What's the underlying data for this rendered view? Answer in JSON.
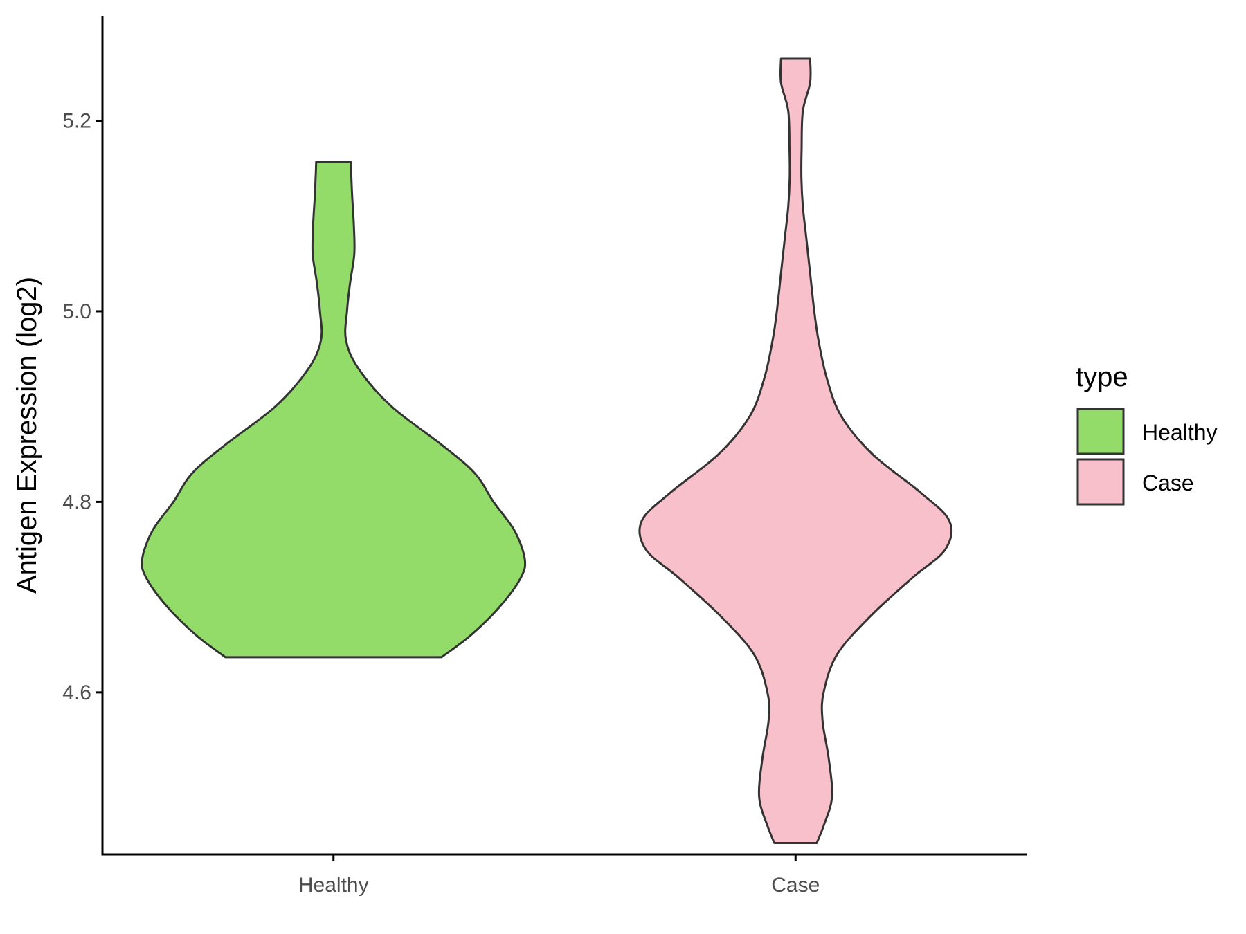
{
  "chart_data": {
    "type": "violin",
    "ylabel": "Antigen Expression (log2)",
    "xlabel": "",
    "categories": [
      "Healthy",
      "Case"
    ],
    "y_ticks": [
      "4.6",
      "4.8",
      "5.0",
      "5.2"
    ],
    "ylim": [
      4.43,
      5.31
    ],
    "legend": {
      "title": "type",
      "position": "right",
      "entries": [
        {
          "label": "Healthy",
          "color": "#93dc6a"
        },
        {
          "label": "Case",
          "color": "#f8c0cb"
        }
      ]
    },
    "grid": false,
    "series": [
      {
        "category": "Healthy",
        "color": "#93dc6a",
        "outline": "#333333",
        "min": 4.637,
        "max": 5.157,
        "density_profile": [
          [
            4.637,
            0.52
          ],
          [
            4.66,
            0.66
          ],
          [
            4.69,
            0.8
          ],
          [
            4.72,
            0.9
          ],
          [
            4.74,
            0.92
          ],
          [
            4.77,
            0.87
          ],
          [
            4.8,
            0.77
          ],
          [
            4.83,
            0.68
          ],
          [
            4.86,
            0.52
          ],
          [
            4.9,
            0.28
          ],
          [
            4.94,
            0.12
          ],
          [
            4.97,
            0.06
          ],
          [
            5.0,
            0.065
          ],
          [
            5.03,
            0.08
          ],
          [
            5.06,
            0.1
          ],
          [
            5.09,
            0.098
          ],
          [
            5.12,
            0.09
          ],
          [
            5.14,
            0.086
          ],
          [
            5.157,
            0.083
          ]
        ]
      },
      {
        "category": "Case",
        "color": "#f8c0cb",
        "outline": "#333333",
        "min": 4.442,
        "max": 5.265,
        "density_profile": [
          [
            4.442,
            0.102
          ],
          [
            4.46,
            0.135
          ],
          [
            4.49,
            0.175
          ],
          [
            4.53,
            0.16
          ],
          [
            4.57,
            0.13
          ],
          [
            4.6,
            0.135
          ],
          [
            4.64,
            0.2
          ],
          [
            4.68,
            0.36
          ],
          [
            4.72,
            0.56
          ],
          [
            4.75,
            0.72
          ],
          [
            4.78,
            0.74
          ],
          [
            4.81,
            0.6
          ],
          [
            4.85,
            0.37
          ],
          [
            4.89,
            0.22
          ],
          [
            4.93,
            0.15
          ],
          [
            4.97,
            0.11
          ],
          [
            5.0,
            0.09
          ],
          [
            5.04,
            0.07
          ],
          [
            5.08,
            0.05
          ],
          [
            5.11,
            0.035
          ],
          [
            5.14,
            0.028
          ],
          [
            5.17,
            0.029
          ],
          [
            5.21,
            0.035
          ],
          [
            5.24,
            0.07
          ],
          [
            5.265,
            0.07
          ]
        ]
      }
    ]
  }
}
